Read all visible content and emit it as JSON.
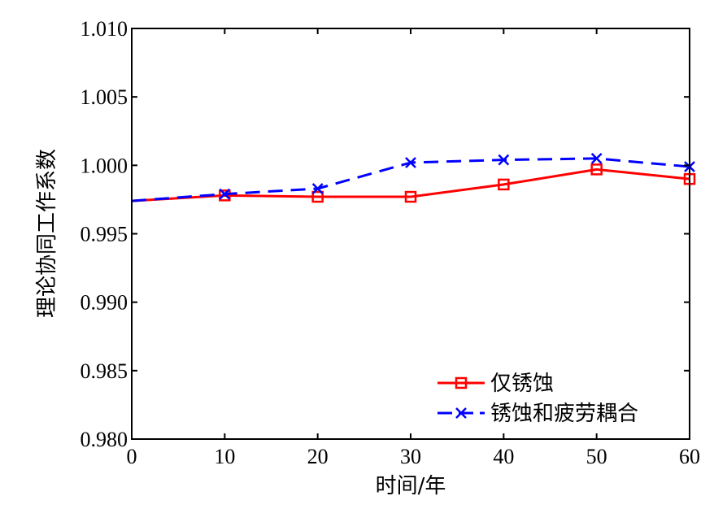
{
  "chart_data": {
    "type": "line",
    "title": "",
    "xlabel": "时间/年",
    "ylabel": "理论协同工作系数",
    "xlim": [
      0,
      60
    ],
    "ylim": [
      0.98,
      1.01
    ],
    "xticks": [
      "0",
      "10",
      "20",
      "30",
      "40",
      "50",
      "60"
    ],
    "yticks": [
      "0.980",
      "0.985",
      "0.990",
      "0.995",
      "1.000",
      "1.005",
      "1.010"
    ],
    "grid": false,
    "legend_position": "bottom-right",
    "x": [
      0,
      10,
      20,
      30,
      40,
      50,
      60
    ],
    "series": [
      {
        "name": "仅锈蚀",
        "color": "#ff0000",
        "marker": "square",
        "dash": "solid",
        "values": [
          0.9974,
          0.9978,
          0.9977,
          0.9977,
          0.9986,
          0.9997,
          0.999
        ]
      },
      {
        "name": "锈蚀和疲劳耦合",
        "color": "#0000ff",
        "marker": "x",
        "dash": "dashed",
        "values": [
          0.9974,
          0.9979,
          0.9983,
          1.0002,
          1.0004,
          1.0005,
          0.9999
        ]
      }
    ]
  }
}
